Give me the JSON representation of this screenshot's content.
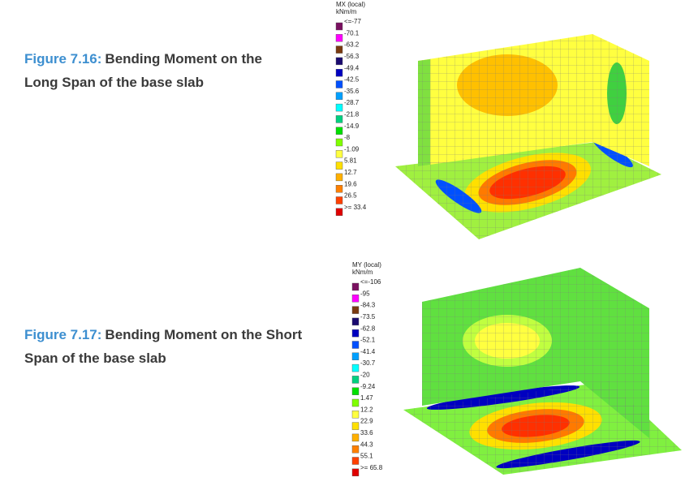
{
  "figures": [
    {
      "label": "Figure 7.16:",
      "caption_lines": [
        "Bending Moment on the",
        "Long Span of the base slab"
      ],
      "legend": {
        "title": "MX (local)",
        "unit": "kNm/m",
        "entries": [
          {
            "label": "<=-77",
            "color": "#7a1060"
          },
          {
            "label": "-70.1",
            "color": "#ff00ff"
          },
          {
            "label": "-63.2",
            "color": "#7a3a10"
          },
          {
            "label": "-56.3",
            "color": "#1a0a70"
          },
          {
            "label": "-49.4",
            "color": "#0000c0"
          },
          {
            "label": "-42.5",
            "color": "#0050ff"
          },
          {
            "label": "-35.6",
            "color": "#00a0ff"
          },
          {
            "label": "-28.7",
            "color": "#00ffff"
          },
          {
            "label": "-21.8",
            "color": "#00d080"
          },
          {
            "label": "-14.9",
            "color": "#00e000"
          },
          {
            "label": "-8",
            "color": "#80ff00"
          },
          {
            "label": "-1.09",
            "color": "#ffff40"
          },
          {
            "label": "5.81",
            "color": "#ffe000"
          },
          {
            "label": "12.7",
            "color": "#ffb000"
          },
          {
            "label": "19.6",
            "color": "#ff8000"
          },
          {
            "label": "26.5",
            "color": "#ff4000"
          },
          {
            "label": ">= 33.4",
            "color": "#e00000"
          }
        ]
      }
    },
    {
      "label": "Figure 7.17:",
      "caption_lines": [
        "Bending Moment on the Short",
        "Span of the base slab"
      ],
      "legend": {
        "title": "MY (local)",
        "unit": "kNm/m",
        "entries": [
          {
            "label": "<=-106",
            "color": "#7a1060"
          },
          {
            "label": "-95",
            "color": "#ff00ff"
          },
          {
            "label": "-84.3",
            "color": "#7a3a10"
          },
          {
            "label": "-73.5",
            "color": "#1a0a70"
          },
          {
            "label": "-62.8",
            "color": "#0000c0"
          },
          {
            "label": "-52.1",
            "color": "#0050ff"
          },
          {
            "label": "-41.4",
            "color": "#00a0ff"
          },
          {
            "label": "-30.7",
            "color": "#00ffff"
          },
          {
            "label": "-20",
            "color": "#00d080"
          },
          {
            "label": "-9.24",
            "color": "#00e000"
          },
          {
            "label": "1.47",
            "color": "#80ff00"
          },
          {
            "label": "12.2",
            "color": "#ffff40"
          },
          {
            "label": "22.9",
            "color": "#ffe000"
          },
          {
            "label": "33.6",
            "color": "#ffb000"
          },
          {
            "label": "44.3",
            "color": "#ff8000"
          },
          {
            "label": "55.1",
            "color": "#ff4000"
          },
          {
            "label": ">= 65.8",
            "color": "#e00000"
          }
        ]
      }
    }
  ]
}
